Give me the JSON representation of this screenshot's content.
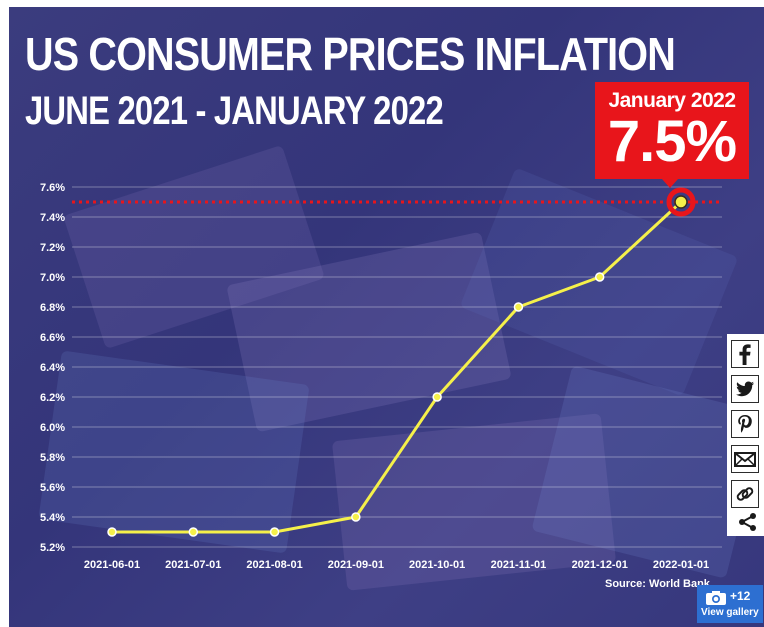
{
  "chart_data": {
    "type": "line",
    "title": "US CONSUMER PRICES INFLATION",
    "subtitle": "JUNE 2021 - JANUARY 2022",
    "categories": [
      "2021-06-01",
      "2021-07-01",
      "2021-08-01",
      "2021-09-01",
      "2021-10-01",
      "2021-11-01",
      "2021-12-01",
      "2022-01-01"
    ],
    "values": [
      5.3,
      5.3,
      5.3,
      5.4,
      6.2,
      6.8,
      7.0,
      7.5
    ],
    "ylim": [
      5.2,
      7.6
    ],
    "yticks": [
      "5.2%",
      "5.4%",
      "5.6%",
      "5.8%",
      "6.0%",
      "6.2%",
      "6.4%",
      "6.6%",
      "6.8%",
      "7.0%",
      "7.2%",
      "7.4%",
      "7.6%"
    ],
    "reference_line": 7.5,
    "annotation": {
      "label": "January 2022",
      "value": "7.5%"
    },
    "source": "Source: World Bank",
    "line_color": "#f5f04a",
    "reference_color": "#e8151b",
    "grid": true
  },
  "share": {
    "buttons": [
      "facebook-icon",
      "twitter-icon",
      "pinterest-icon",
      "email-icon",
      "link-icon",
      "share-icon"
    ]
  },
  "gallery": {
    "count": "+12",
    "label": "View gallery"
  }
}
